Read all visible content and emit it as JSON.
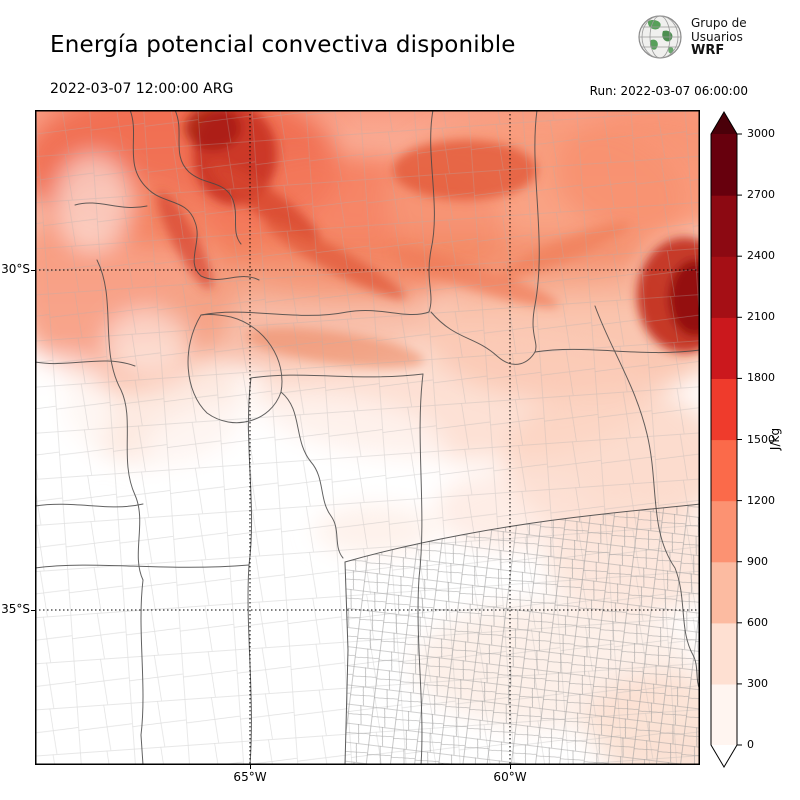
{
  "header": {
    "title": "Energía potencial convectiva disponible",
    "valid_time": "2022-03-07 12:00:00 ARG",
    "run_label": "Run: 2022-03-07 06:00:00",
    "logo": {
      "line1": "Grupo de",
      "line2": "Usuarios",
      "line3": "WRF"
    }
  },
  "map": {
    "lat_ticks": [
      {
        "label": "30°S"
      },
      {
        "label": "35°S"
      }
    ],
    "lon_ticks": [
      {
        "label": "65°W"
      },
      {
        "label": "60°W"
      }
    ]
  },
  "colorbar": {
    "unit": "J/kg",
    "levels": [
      0,
      300,
      600,
      900,
      1200,
      1500,
      1800,
      2100,
      2400,
      2700,
      3000
    ],
    "colors": [
      "#fff5f0",
      "#fee0d2",
      "#fcbba1",
      "#fc9272",
      "#fb6a4a",
      "#ef3b2c",
      "#cb181d",
      "#a50f15",
      "#8c0912",
      "#67000d"
    ],
    "over_color": "#4a0009",
    "under_color": "#ffffff"
  },
  "chart_data": {
    "type": "heatmap",
    "title": "Energía potencial convectiva disponible",
    "valid_time": "2022-03-07 12:00:00 ARG",
    "run": "2022-03-07 06:00:00",
    "unit": "J/kg",
    "levels": [
      0,
      300,
      600,
      900,
      1200,
      1500,
      1800,
      2100,
      2400,
      2700,
      3000
    ],
    "lat_ticks": [
      "30°S",
      "35°S"
    ],
    "lon_ticks": [
      "65°W",
      "60°W"
    ],
    "legend_position": "right",
    "description": "CAPE field over central-northern Argentina: high values (900-3000 J/kg) across the north and northeast edge, near-zero in the center and southwest, light values (0-600 J/kg) over the southeast"
  }
}
